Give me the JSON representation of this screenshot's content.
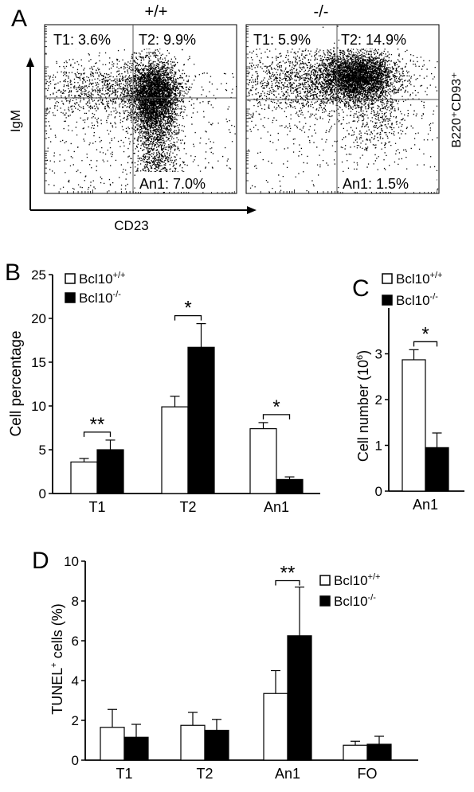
{
  "panel_a": {
    "letter": "A",
    "wt_title": "+/+",
    "ko_title": "-/-",
    "ylabel": "IgM",
    "xlabel": "CD23",
    "gate_label": "B220⁺CD93⁺",
    "wt_quadrants": {
      "t1": "T1: 3.6%",
      "t2": "T2: 9.9%",
      "an1": "An1: 7.0%"
    },
    "ko_quadrants": {
      "t1": "T1: 5.9%",
      "t2": "T2: 14.9%",
      "an1": "An1: 1.5%"
    }
  },
  "legend": {
    "wt_base": "Bcl10",
    "wt_sup": "+/+",
    "ko_base": "Bcl10",
    "ko_sup": "-/-"
  },
  "colors": {
    "wt_fill": "#ffffff",
    "ko_fill": "#000000",
    "stroke": "#000000"
  },
  "chart_data": [
    {
      "panel": "B",
      "type": "bar",
      "title": "",
      "ylabel": "Cell percentage",
      "xlabel": "",
      "ylim": [
        0,
        25
      ],
      "yticks": [
        0,
        5,
        10,
        15,
        20,
        25
      ],
      "categories": [
        "T1",
        "T2",
        "An1"
      ],
      "series": [
        {
          "name": "Bcl10+/+",
          "values": [
            3.6,
            9.9,
            7.4
          ],
          "errors": [
            0.4,
            1.2,
            0.7
          ]
        },
        {
          "name": "Bcl10-/-",
          "values": [
            5.0,
            16.7,
            1.6
          ],
          "errors": [
            1.1,
            2.7,
            0.3
          ]
        }
      ],
      "significance": [
        "**",
        "*",
        "*"
      ],
      "legend": "top-left"
    },
    {
      "panel": "C",
      "type": "bar",
      "title": "",
      "ylabel": "Cell number (10⁶)",
      "xlabel": "",
      "ylim": [
        0,
        4
      ],
      "yticks": [
        0,
        1,
        2,
        3
      ],
      "categories": [
        "An1"
      ],
      "series": [
        {
          "name": "Bcl10+/+",
          "values": [
            2.87
          ],
          "errors": [
            0.22
          ]
        },
        {
          "name": "Bcl10-/-",
          "values": [
            0.95
          ],
          "errors": [
            0.32
          ]
        }
      ],
      "significance": [
        "*"
      ],
      "legend": "top"
    },
    {
      "panel": "D",
      "type": "bar",
      "title": "",
      "ylabel": "TUNEL⁺ cells (%)",
      "xlabel": "",
      "ylim": [
        0,
        10
      ],
      "yticks": [
        0,
        2,
        4,
        6,
        8,
        10
      ],
      "categories": [
        "T1",
        "T2",
        "An1",
        "FO"
      ],
      "series": [
        {
          "name": "Bcl10+/+",
          "values": [
            1.65,
            1.75,
            3.35,
            0.75
          ],
          "errors": [
            0.9,
            0.65,
            1.15,
            0.2
          ]
        },
        {
          "name": "Bcl10-/-",
          "values": [
            1.15,
            1.5,
            6.25,
            0.8
          ],
          "errors": [
            0.65,
            0.55,
            2.45,
            0.4
          ]
        }
      ],
      "significance": [
        "",
        "",
        "**",
        ""
      ],
      "legend": "top-right"
    }
  ]
}
